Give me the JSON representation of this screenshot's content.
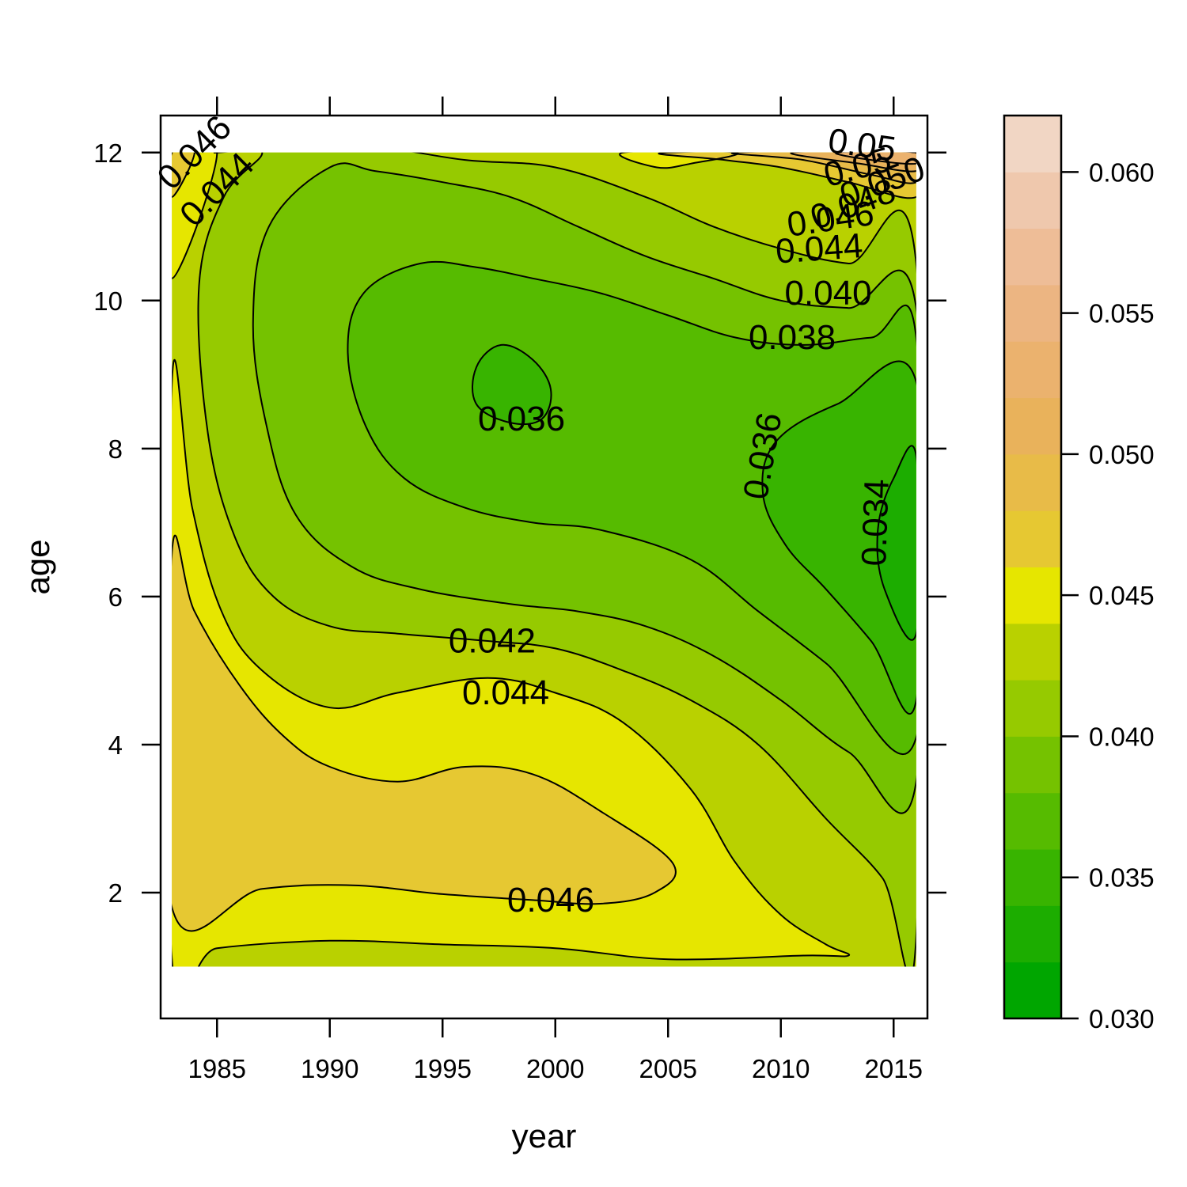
{
  "chart_data": {
    "type": "heatmap",
    "subtype": "filled-contour",
    "title": "",
    "xlabel": "year",
    "ylabel": "age",
    "xlim": [
      1982.5,
      2016.5
    ],
    "ylim": [
      0.3,
      12.5
    ],
    "data_extent": {
      "x": [
        1983,
        2016
      ],
      "y": [
        1,
        12
      ]
    },
    "x_ticks": [
      1985,
      1990,
      1995,
      2000,
      2005,
      2010,
      2015
    ],
    "x_tick_labels": [
      "1985",
      "1990",
      "1995",
      "2000",
      "2005",
      "2010",
      "2015"
    ],
    "y_ticks": [
      2,
      4,
      6,
      8,
      10,
      12
    ],
    "y_tick_labels": [
      "2",
      "4",
      "6",
      "8",
      "10",
      "12"
    ],
    "grid": false,
    "colorbar": {
      "range": [
        0.03,
        0.062
      ],
      "ticks": [
        0.03,
        0.035,
        0.04,
        0.045,
        0.05,
        0.055,
        0.06
      ],
      "tick_labels": [
        "0.030",
        "0.035",
        "0.040",
        "0.045",
        "0.050",
        "0.055",
        "0.060"
      ],
      "bands": [
        {
          "from": 0.03,
          "to": 0.032,
          "color": "#00a600"
        },
        {
          "from": 0.032,
          "to": 0.034,
          "color": "#1cad00"
        },
        {
          "from": 0.034,
          "to": 0.036,
          "color": "#38b400"
        },
        {
          "from": 0.036,
          "to": 0.038,
          "color": "#56bb00"
        },
        {
          "from": 0.038,
          "to": 0.04,
          "color": "#75c200"
        },
        {
          "from": 0.04,
          "to": 0.042,
          "color": "#96ca00"
        },
        {
          "from": 0.042,
          "to": 0.044,
          "color": "#b9d100"
        },
        {
          "from": 0.044,
          "to": 0.046,
          "color": "#e6e600"
        },
        {
          "from": 0.046,
          "to": 0.048,
          "color": "#e6c832"
        },
        {
          "from": 0.048,
          "to": 0.05,
          "color": "#e8bb48"
        },
        {
          "from": 0.05,
          "to": 0.052,
          "color": "#e9b25b"
        },
        {
          "from": 0.052,
          "to": 0.054,
          "color": "#ebb26e"
        },
        {
          "from": 0.054,
          "to": 0.056,
          "color": "#ecb582"
        },
        {
          "from": 0.056,
          "to": 0.058,
          "color": "#eebd97"
        },
        {
          "from": 0.058,
          "to": 0.06,
          "color": "#efc8ad"
        },
        {
          "from": 0.06,
          "to": 0.062,
          "color": "#f1d6c4"
        }
      ]
    },
    "contour_labels": [
      {
        "text": "0.046",
        "x": 1984.0,
        "y": 12.0,
        "angle": -45
      },
      {
        "text": "0.044",
        "x": 1985.0,
        "y": 11.5,
        "angle": -45
      },
      {
        "text": "0.05",
        "x": 2013.6,
        "y": 12.1,
        "angle": 8
      },
      {
        "text": "0.05",
        "x": 2013.4,
        "y": 11.8,
        "angle": -15
      },
      {
        "text": "0.050",
        "x": 2014.5,
        "y": 11.6,
        "angle": -20
      },
      {
        "text": "0.048",
        "x": 2013.2,
        "y": 11.3,
        "angle": -20
      },
      {
        "text": "0.046",
        "x": 2012.2,
        "y": 11.1,
        "angle": -8
      },
      {
        "text": "0.044",
        "x": 2011.7,
        "y": 10.7,
        "angle": -4
      },
      {
        "text": "0.040",
        "x": 2012.1,
        "y": 10.1,
        "angle": 0
      },
      {
        "text": "0.038",
        "x": 2010.5,
        "y": 9.5,
        "angle": 0
      },
      {
        "text": "0.036",
        "x": 1998.5,
        "y": 8.4,
        "angle": 0
      },
      {
        "text": "0.036",
        "x": 2009.2,
        "y": 7.9,
        "angle": -80
      },
      {
        "text": "0.034",
        "x": 2014.2,
        "y": 7.0,
        "angle": -88
      },
      {
        "text": "0.042",
        "x": 1997.2,
        "y": 5.4,
        "angle": 0
      },
      {
        "text": "0.044",
        "x": 1997.8,
        "y": 4.7,
        "angle": 0
      },
      {
        "text": "0.046",
        "x": 1999.8,
        "y": 1.9,
        "angle": 0
      }
    ],
    "regions": [
      {
        "value": 0.043,
        "points": [
          [
            1983,
            12
          ],
          [
            2016,
            12
          ],
          [
            2016,
            1
          ],
          [
            1983,
            1
          ]
        ]
      },
      {
        "value": 0.045,
        "points": [
          [
            1983,
            12
          ],
          [
            1985,
            12
          ],
          [
            1983,
            10.3
          ]
        ]
      },
      {
        "value": 0.047,
        "points": [
          [
            1983,
            12
          ],
          [
            1984,
            12
          ],
          [
            1983,
            11.4
          ]
        ]
      },
      {
        "value": 0.045,
        "points": [
          [
            1983,
            8.9
          ],
          [
            1983.9,
            7.2
          ],
          [
            1985.2,
            5.8
          ],
          [
            1987,
            5
          ],
          [
            1990,
            4.5
          ],
          [
            1993,
            4.7
          ],
          [
            1997,
            4.9
          ],
          [
            2000,
            4.7
          ],
          [
            2003,
            4.3
          ],
          [
            2006,
            3.4
          ],
          [
            2008,
            2.4
          ],
          [
            2010,
            1.7
          ],
          [
            2012,
            1.3
          ],
          [
            2013,
            1.15
          ],
          [
            2011,
            1.15
          ],
          [
            2005,
            1.1
          ],
          [
            2000,
            1.25
          ],
          [
            1995,
            1.3
          ],
          [
            1990,
            1.35
          ],
          [
            1985,
            1.25
          ],
          [
            1983,
            1.1
          ]
        ]
      },
      {
        "value": 0.047,
        "points": [
          [
            1983,
            6.6
          ],
          [
            1984,
            5.8
          ],
          [
            1986,
            4.8
          ],
          [
            1988,
            4.1
          ],
          [
            1990,
            3.7
          ],
          [
            1993,
            3.5
          ],
          [
            1996,
            3.7
          ],
          [
            1999,
            3.6
          ],
          [
            2002,
            3.1
          ],
          [
            2005.2,
            2.4
          ],
          [
            2004.4,
            2.0
          ],
          [
            2002,
            1.85
          ],
          [
            1999,
            1.9
          ],
          [
            1995,
            1.98
          ],
          [
            1991,
            2.1
          ],
          [
            1987,
            2.05
          ],
          [
            1983,
            1.8
          ]
        ]
      },
      {
        "value": 0.045,
        "points": [
          [
            2003,
            12
          ],
          [
            2008,
            12
          ],
          [
            2006,
            11.85
          ],
          [
            2004.5,
            11.8
          ]
        ]
      },
      {
        "value": 0.047,
        "points": [
          [
            2005,
            12
          ],
          [
            2016,
            12
          ],
          [
            2016,
            11.4
          ],
          [
            2013,
            11.6
          ],
          [
            2010,
            11.8
          ],
          [
            2007.5,
            11.9
          ]
        ]
      },
      {
        "value": 0.049,
        "points": [
          [
            2008,
            12
          ],
          [
            2016,
            12
          ],
          [
            2016,
            11.6
          ],
          [
            2014,
            11.7
          ],
          [
            2011,
            11.9
          ]
        ]
      },
      {
        "value": 0.051,
        "points": [
          [
            2010.5,
            12
          ],
          [
            2016,
            12
          ],
          [
            2016,
            11.75
          ],
          [
            2013.5,
            11.85
          ]
        ]
      },
      {
        "value": 0.053,
        "points": [
          [
            2012.5,
            12
          ],
          [
            2016,
            12
          ],
          [
            2016,
            11.85
          ],
          [
            2014,
            11.9
          ]
        ]
      },
      {
        "value": 0.041,
        "points": [
          [
            1985,
            12
          ],
          [
            1987,
            12
          ],
          [
            1985.3,
            11.4
          ],
          [
            1984.2,
            10.2
          ],
          [
            1984.6,
            8.2
          ],
          [
            1985.8,
            6.8
          ],
          [
            1987.5,
            6.0
          ],
          [
            1990,
            5.6
          ],
          [
            1993,
            5.5
          ],
          [
            1997,
            5.4
          ],
          [
            2000,
            5.3
          ],
          [
            2003,
            5.0
          ],
          [
            2006,
            4.6
          ],
          [
            2009,
            4.0
          ],
          [
            2012,
            3.0
          ],
          [
            2014.5,
            2.2
          ],
          [
            2016,
            1.4
          ],
          [
            2016,
            10.5
          ],
          [
            2013,
            10.5
          ],
          [
            2010,
            10.7
          ],
          [
            2007,
            11.0
          ],
          [
            2004,
            11.4
          ],
          [
            2000,
            11.8
          ],
          [
            1996,
            11.9
          ],
          [
            1991,
            12.1
          ]
        ]
      },
      {
        "value": 0.039,
        "points": [
          [
            1990,
            11.8
          ],
          [
            1987.3,
            11.0
          ],
          [
            1986.6,
            9.7
          ],
          [
            1987.2,
            8.3
          ],
          [
            1988.5,
            7.1
          ],
          [
            1991,
            6.4
          ],
          [
            1994,
            6.1
          ],
          [
            1998,
            5.9
          ],
          [
            2001,
            5.8
          ],
          [
            2004,
            5.6
          ],
          [
            2007,
            5.2
          ],
          [
            2010,
            4.6
          ],
          [
            2013,
            3.9
          ],
          [
            2016,
            3.5
          ],
          [
            2016,
            9.9
          ],
          [
            2013,
            9.9
          ],
          [
            2010,
            10.0
          ],
          [
            2007,
            10.3
          ],
          [
            2004,
            10.6
          ],
          [
            2001,
            11.0
          ],
          [
            1998,
            11.4
          ],
          [
            1995,
            11.6
          ],
          [
            1992,
            11.75
          ]
        ]
      },
      {
        "value": 0.037,
        "points": [
          [
            1994,
            10.5
          ],
          [
            1991.5,
            10.1
          ],
          [
            1990.8,
            9.3
          ],
          [
            1991.6,
            8.3
          ],
          [
            1993.3,
            7.6
          ],
          [
            1996,
            7.2
          ],
          [
            1999,
            7.0
          ],
          [
            2002,
            6.9
          ],
          [
            2006,
            6.5
          ],
          [
            2009,
            5.8
          ],
          [
            2012,
            5.1
          ],
          [
            2016,
            4.1
          ],
          [
            2016,
            9.5
          ],
          [
            2014,
            9.5
          ],
          [
            2011,
            9.4
          ],
          [
            2008,
            9.5
          ],
          [
            2005,
            9.8
          ],
          [
            2002,
            10.1
          ],
          [
            1999,
            10.3
          ],
          [
            1996.5,
            10.45
          ]
        ]
      },
      {
        "value": 0.035,
        "points": [
          [
            2016,
            8.9
          ],
          [
            2012.5,
            8.6
          ],
          [
            2009.8,
            8.1
          ],
          [
            2009.2,
            7.4
          ],
          [
            2010.2,
            6.7
          ],
          [
            2012,
            6.1
          ],
          [
            2014,
            5.4
          ],
          [
            2016,
            4.6
          ]
        ]
      },
      {
        "value": 0.033,
        "points": [
          [
            2016,
            7.9
          ],
          [
            2015,
            7.6
          ],
          [
            2014.3,
            6.9
          ],
          [
            2014.6,
            6.1
          ],
          [
            2016,
            5.5
          ]
        ]
      },
      {
        "value": 0.035,
        "points": [
          [
            1996.5,
            9.1
          ],
          [
            1997.6,
            9.4
          ],
          [
            1999,
            9.2
          ],
          [
            1999.8,
            8.8
          ],
          [
            1999.4,
            8.4
          ],
          [
            1998,
            8.35
          ],
          [
            1996.5,
            8.6
          ]
        ]
      }
    ]
  }
}
